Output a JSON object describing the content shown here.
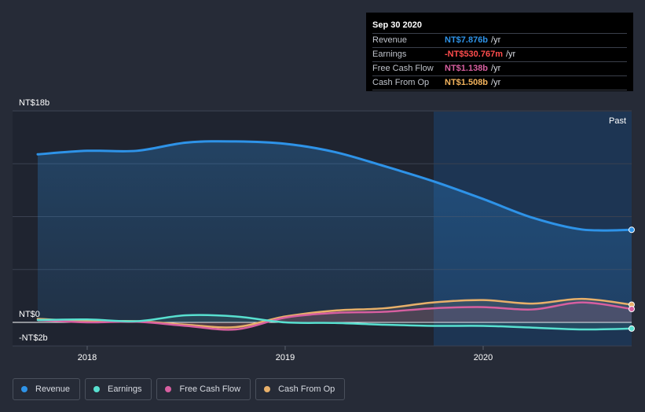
{
  "tooltip": {
    "date": "Sep 30 2020",
    "rows": [
      {
        "label": "Revenue",
        "value": "NT$7.876b",
        "unit": "/yr",
        "color": "#2e93e8"
      },
      {
        "label": "Earnings",
        "value": "-NT$530.767m",
        "unit": "/yr",
        "color": "#ff4d4d"
      },
      {
        "label": "Free Cash Flow",
        "value": "NT$1.138b",
        "unit": "/yr",
        "color": "#d75fa0"
      },
      {
        "label": "Cash From Op",
        "value": "NT$1.508b",
        "unit": "/yr",
        "color": "#f2b25c"
      }
    ]
  },
  "legend": [
    {
      "label": "Revenue",
      "color": "#2e93e8"
    },
    {
      "label": "Earnings",
      "color": "#58e0d0"
    },
    {
      "label": "Free Cash Flow",
      "color": "#d75fa0"
    },
    {
      "label": "Cash From Op",
      "color": "#e8b06a"
    }
  ],
  "chart_data": {
    "type": "area",
    "title": "",
    "past_label": "Past",
    "y_top_label": "NT$18b",
    "y_zero_label": "NT$0",
    "y_bottom_label": "-NT$2b",
    "ylim": [
      -2,
      18
    ],
    "xlim": [
      2017.75,
      2020.75
    ],
    "x_ticks": [
      2018,
      2019,
      2020
    ],
    "x_tick_labels": [
      "2018",
      "2019",
      "2020"
    ],
    "past_region_start": 2019.75,
    "series": [
      {
        "name": "Revenue",
        "color": "#2e93e8",
        "x": [
          2017.75,
          2018.0,
          2018.25,
          2018.5,
          2018.75,
          2019.0,
          2019.25,
          2019.5,
          2019.75,
          2020.0,
          2020.25,
          2020.5,
          2020.75
        ],
        "values": [
          14.3,
          14.6,
          14.6,
          15.3,
          15.4,
          15.2,
          14.5,
          13.3,
          12.0,
          10.5,
          8.9,
          7.9,
          7.876
        ]
      },
      {
        "name": "Earnings",
        "color": "#58e0d0",
        "x": [
          2017.75,
          2018.0,
          2018.25,
          2018.5,
          2018.75,
          2019.0,
          2019.25,
          2019.5,
          2019.75,
          2020.0,
          2020.25,
          2020.5,
          2020.75
        ],
        "values": [
          0.2,
          0.25,
          0.1,
          0.6,
          0.5,
          0.0,
          -0.05,
          -0.2,
          -0.3,
          -0.3,
          -0.45,
          -0.6,
          -0.53
        ]
      },
      {
        "name": "Free Cash Flow",
        "color": "#d75fa0",
        "x": [
          2017.75,
          2018.0,
          2018.25,
          2018.5,
          2018.75,
          2019.0,
          2019.25,
          2019.5,
          2019.75,
          2020.0,
          2020.25,
          2020.5,
          2020.75
        ],
        "values": [
          0.2,
          0.0,
          0.05,
          -0.3,
          -0.6,
          0.4,
          0.8,
          0.9,
          1.2,
          1.3,
          1.1,
          1.7,
          1.138
        ]
      },
      {
        "name": "Cash From Op",
        "color": "#e8b06a",
        "x": [
          2017.75,
          2018.0,
          2018.25,
          2018.5,
          2018.75,
          2019.0,
          2019.25,
          2019.5,
          2019.75,
          2020.0,
          2020.25,
          2020.5,
          2020.75
        ],
        "values": [
          0.3,
          0.1,
          0.1,
          -0.2,
          -0.4,
          0.5,
          1.0,
          1.2,
          1.7,
          1.9,
          1.6,
          2.0,
          1.508
        ]
      }
    ]
  }
}
